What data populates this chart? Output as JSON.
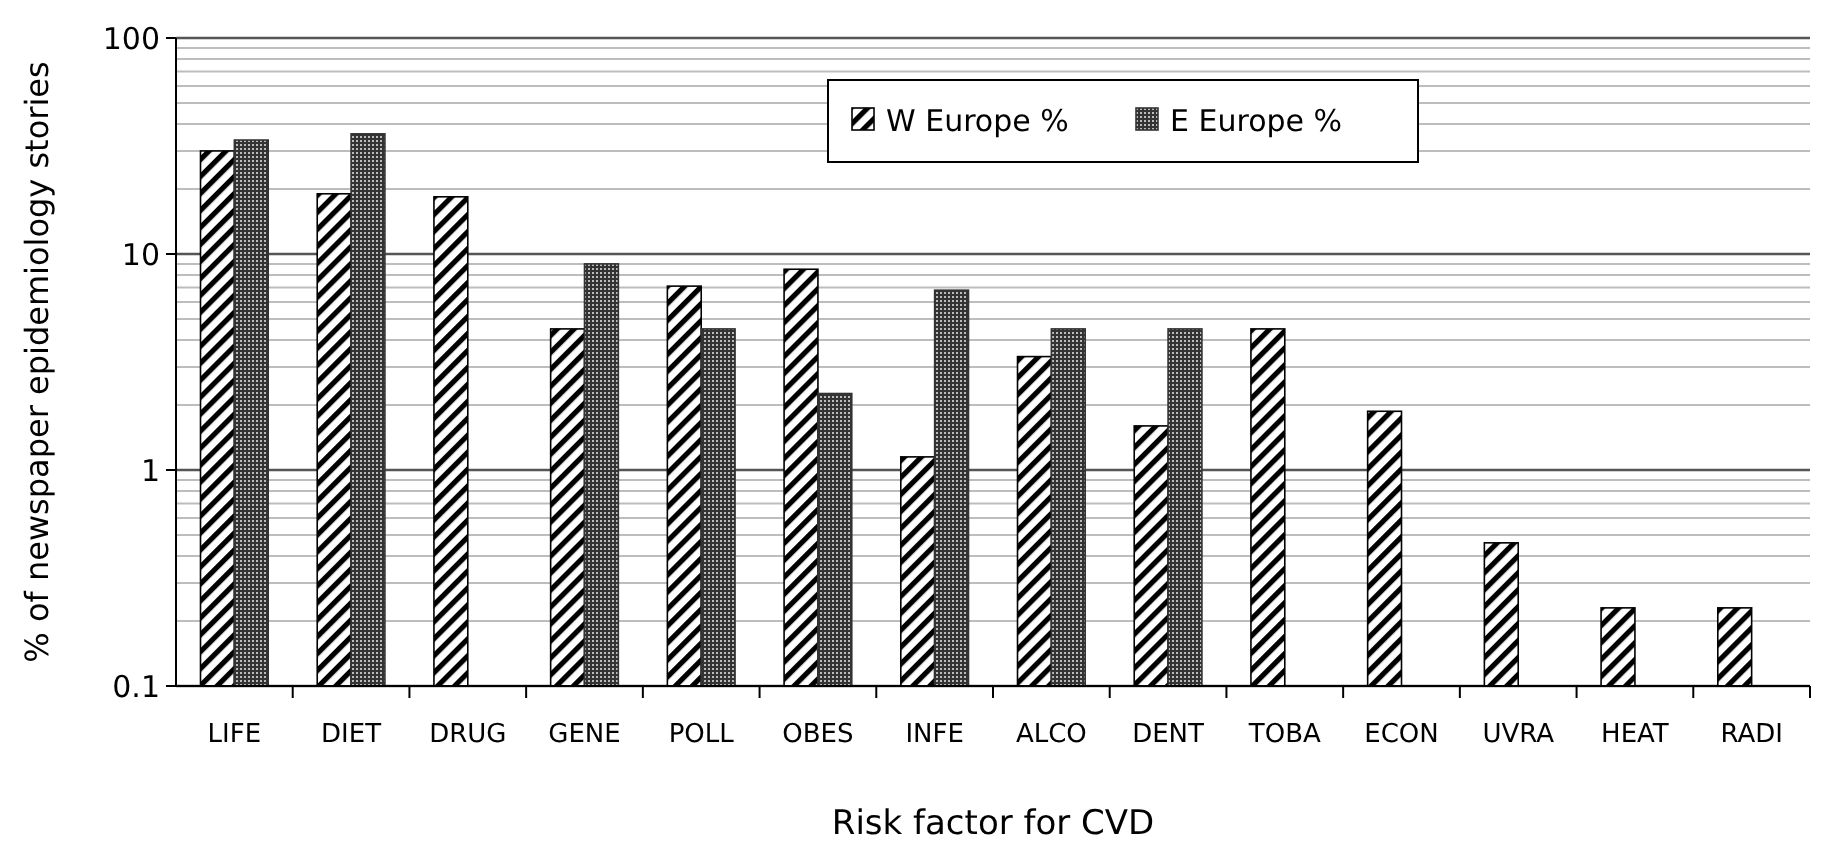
{
  "chart_data": {
    "type": "bar",
    "xlabel": "Risk factor for CVD",
    "ylabel": "% of newspaper epidemiology stories",
    "categories": [
      "LIFE",
      "DIET",
      "DRUG",
      "GENE",
      "POLL",
      "OBES",
      "INFE",
      "ALCO",
      "DENT",
      "TOBA",
      "ECON",
      "UVRA",
      "HEAT",
      "RADI"
    ],
    "series": [
      {
        "name": "W Europe %",
        "color": "#000000",
        "values": [
          30,
          19,
          18.4,
          4.5,
          7.1,
          8.5,
          1.15,
          3.35,
          1.6,
          4.5,
          1.87,
          0.46,
          0.23,
          0.23
        ]
      },
      {
        "name": "E Europe %",
        "color": "#333333",
        "values": [
          33.7,
          36,
          null,
          9,
          4.5,
          2.26,
          6.8,
          4.5,
          4.5,
          null,
          null,
          null,
          null,
          null
        ]
      }
    ],
    "log": true,
    "ylim": [
      0.1,
      100
    ],
    "yticks": [
      0.1,
      {
        "value": 0.2,
        "label": null
      },
      {
        "value": 0.3,
        "label": null
      },
      {
        "value": 0.4,
        "label": null
      },
      {
        "value": 0.5,
        "label": null
      },
      {
        "value": 0.6,
        "label": null
      },
      {
        "value": 0.7,
        "label": null
      },
      {
        "value": 0.8,
        "label": null
      },
      {
        "value": 0.9,
        "label": null
      },
      1,
      {
        "value": 2,
        "label": null
      },
      {
        "value": 3,
        "label": null
      },
      {
        "value": 4,
        "label": null
      },
      {
        "value": 5,
        "label": null
      },
      {
        "value": 6,
        "label": null
      },
      {
        "value": 7,
        "label": null
      },
      {
        "value": 8,
        "label": null
      },
      {
        "value": 9,
        "label": null
      },
      10,
      {
        "value": 20,
        "label": null
      },
      {
        "value": 30,
        "label": null
      },
      {
        "value": 40,
        "label": null
      },
      {
        "value": 50,
        "label": null
      },
      {
        "value": 60,
        "label": null
      },
      {
        "value": 70,
        "label": null
      },
      {
        "value": 80,
        "label": null
      },
      {
        "value": 90,
        "label": null
      },
      100
    ],
    "grid": true,
    "legend": "top"
  }
}
